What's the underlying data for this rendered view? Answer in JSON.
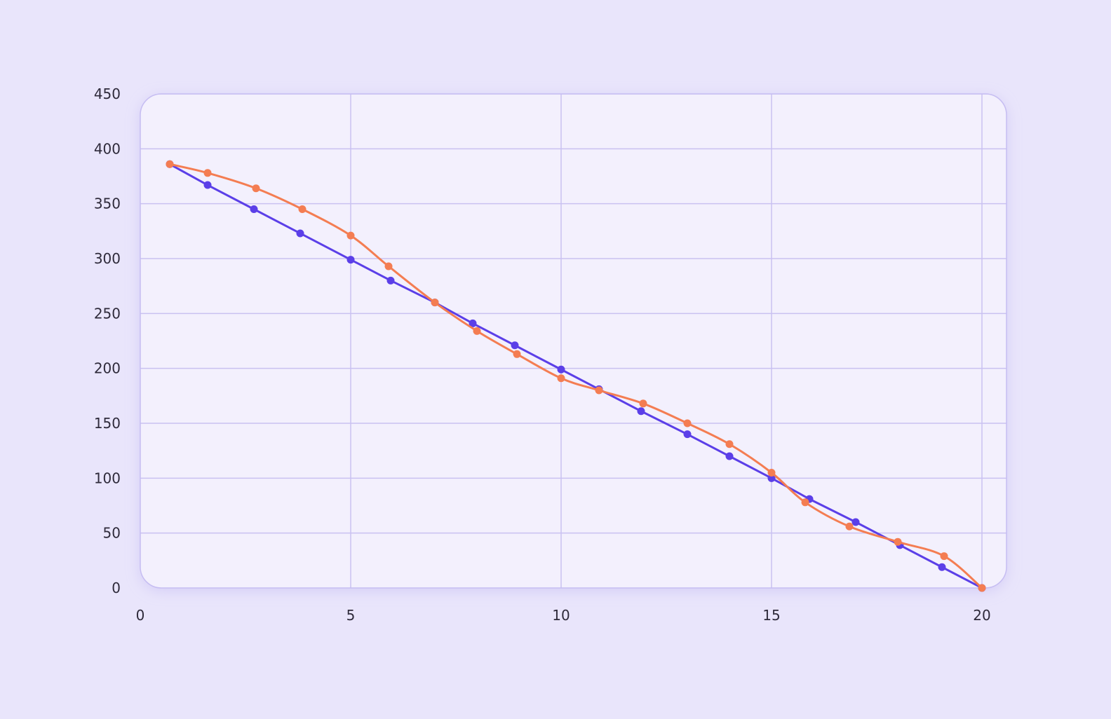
{
  "colors": {
    "background": "#e9e5fb",
    "plot_background": "#f3f0fd",
    "plot_border": "#c6bdf2",
    "grid": "#c9c1f1",
    "series_blue": "#5b3fe8",
    "series_orange": "#f47d52",
    "tick_text": "#2e2a3a"
  },
  "chart_data": {
    "type": "line",
    "title": "",
    "xlabel": "",
    "ylabel": "",
    "xlim": [
      0,
      20
    ],
    "ylim": [
      0,
      450
    ],
    "x_ticks": [
      0,
      5,
      10,
      15,
      20
    ],
    "y_ticks": [
      0,
      50,
      100,
      150,
      200,
      250,
      300,
      350,
      400,
      450
    ],
    "grid": true,
    "legend": "none",
    "series": [
      {
        "color": "#5b3fe8",
        "smooth": false,
        "points": [
          [
            0.7,
            386
          ],
          [
            1.6,
            367
          ],
          [
            2.7,
            345
          ],
          [
            3.8,
            323
          ],
          [
            5.0,
            299
          ],
          [
            5.95,
            280
          ],
          [
            7.0,
            260
          ],
          [
            7.9,
            241
          ],
          [
            8.9,
            221
          ],
          [
            10.0,
            199
          ],
          [
            10.9,
            181
          ],
          [
            11.9,
            161
          ],
          [
            13.0,
            140
          ],
          [
            14.0,
            120
          ],
          [
            15.0,
            100
          ],
          [
            15.9,
            81
          ],
          [
            17.0,
            60
          ],
          [
            18.05,
            39
          ],
          [
            19.05,
            19
          ],
          [
            20.0,
            0
          ]
        ]
      },
      {
        "color": "#f47d52",
        "smooth": true,
        "points": [
          [
            0.7,
            386
          ],
          [
            1.6,
            378
          ],
          [
            2.75,
            364
          ],
          [
            3.85,
            345
          ],
          [
            5.0,
            321
          ],
          [
            5.9,
            293
          ],
          [
            7.0,
            260
          ],
          [
            8.0,
            234
          ],
          [
            8.95,
            213
          ],
          [
            10.0,
            191
          ],
          [
            10.9,
            180
          ],
          [
            11.95,
            168
          ],
          [
            13.0,
            150
          ],
          [
            14.0,
            131
          ],
          [
            15.0,
            105
          ],
          [
            15.8,
            78
          ],
          [
            16.85,
            56
          ],
          [
            18.0,
            42
          ],
          [
            19.1,
            29
          ],
          [
            20.0,
            0
          ]
        ]
      }
    ]
  }
}
